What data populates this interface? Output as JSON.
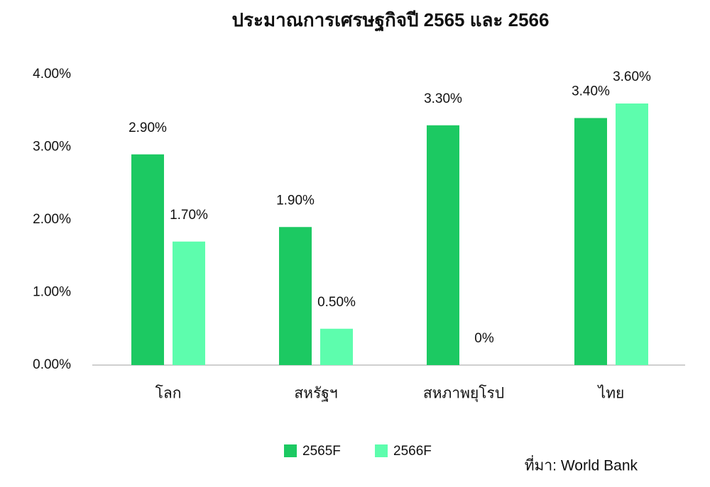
{
  "chart_data": {
    "type": "bar",
    "title": "ประมาณการเศรษฐกิจปี 2565 และ 2566",
    "categories": [
      "โลก",
      "สหรัฐฯ",
      "สหภาพยุโรป",
      "ไทย"
    ],
    "series": [
      {
        "name": "2565F",
        "color": "#1cc962",
        "values": [
          2.9,
          1.9,
          3.3,
          3.4
        ],
        "value_labels": [
          "2.90%",
          "1.90%",
          "3.30%",
          "3.40%"
        ]
      },
      {
        "name": "2566F",
        "color": "#5dfdad",
        "values": [
          1.7,
          0.5,
          0,
          3.6
        ],
        "value_labels": [
          "1.70%",
          "0.50%",
          "0%",
          "3.60%"
        ]
      }
    ],
    "ylim": [
      0,
      4
    ],
    "yticks": [
      {
        "value": 0,
        "label": "0.00%"
      },
      {
        "value": 1,
        "label": "1.00%"
      },
      {
        "value": 2,
        "label": "2.00%"
      },
      {
        "value": 3,
        "label": "3.00%"
      },
      {
        "value": 4,
        "label": "4.00%"
      }
    ],
    "grid": false,
    "legend": "bottom",
    "source": "ที่มา: World Bank"
  }
}
